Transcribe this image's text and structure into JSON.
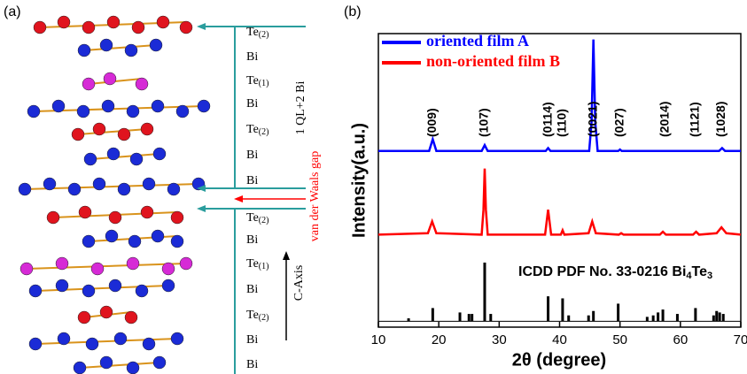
{
  "panel_a": {
    "label": "(a)",
    "layers": [
      {
        "symbol": "Te",
        "subscript": "(2)"
      },
      {
        "symbol": "Bi"
      },
      {
        "symbol": "Te",
        "subscript": "(1)"
      },
      {
        "symbol": "Bi"
      },
      {
        "symbol": "Te",
        "subscript": "(2)"
      },
      {
        "symbol": "Bi"
      },
      {
        "symbol": "Bi"
      },
      {
        "symbol": "Te",
        "subscript": "(2)"
      },
      {
        "symbol": "Bi"
      },
      {
        "symbol": "Te",
        "subscript": "(1)"
      },
      {
        "symbol": "Bi"
      },
      {
        "symbol": "Te",
        "subscript": "(2)"
      },
      {
        "symbol": "Bi"
      },
      {
        "symbol": "Bi"
      }
    ],
    "ql_label": "1 QL+2 Bi",
    "gap_label": "van der Waals gap",
    "axis_label": "C-Axis"
  },
  "chart_data": {
    "type": "line",
    "panel_label": "(b)",
    "x_label": "2θ (degree)",
    "y_label": "Intensity(a.u.)",
    "xlim": [
      10,
      70
    ],
    "xticks": [
      10,
      20,
      30,
      40,
      50,
      60,
      70
    ],
    "ylim": [
      -2,
      98
    ],
    "legend": "upper left",
    "series": [
      {
        "name": "oriented film A",
        "color": "#0000ff",
        "x": [
          10,
          18.4,
          19,
          19.6,
          27.1,
          27.6,
          28.1,
          37.7,
          38.1,
          38.5,
          44.9,
          45.3,
          45.6,
          45.9,
          46.3,
          49.7,
          50,
          50.3,
          66.4,
          66.9,
          67.4,
          70
        ],
        "values": [
          58,
          58,
          62,
          58,
          58,
          60,
          58,
          58,
          59,
          58,
          58,
          68,
          96,
          68,
          58,
          58,
          58.5,
          58,
          58,
          59,
          58,
          58
        ]
      },
      {
        "name": "non-oriented film B",
        "color": "#ff0000",
        "x": [
          10,
          18.2,
          18.9,
          19.6,
          27.1,
          27.4,
          27.6,
          27.8,
          28.1,
          37.6,
          38.1,
          38.6,
          40.2,
          40.5,
          40.8,
          44.8,
          45.4,
          46,
          49.8,
          50.2,
          50.6,
          56.6,
          57.1,
          57.6,
          62.1,
          62.6,
          63.1,
          66,
          66.8,
          67.6,
          70
        ],
        "values": [
          29.5,
          30,
          34,
          30,
          29.5,
          38,
          52,
          38,
          29.5,
          29.5,
          38,
          29.5,
          29.5,
          31,
          29.5,
          30,
          34,
          30,
          29.5,
          30,
          29.5,
          29.5,
          30.5,
          29.5,
          29.5,
          30.5,
          29.5,
          30,
          32,
          30,
          29.5
        ]
      }
    ],
    "reference": {
      "color": "#000000",
      "label": [
        {
          "text": "ICDD PDF No. 33-0216 Bi"
        },
        {
          "sub": "4"
        },
        {
          "text": "Te"
        },
        {
          "sub": "3"
        }
      ],
      "x": [
        15,
        19,
        23.5,
        25,
        25.5,
        27.6,
        28.6,
        38.1,
        40.5,
        41.5,
        44.8,
        45.6,
        49.7,
        54.5,
        55.5,
        56.3,
        57.1,
        59.5,
        62.5,
        65.5,
        66,
        66.5,
        67.1
      ],
      "values": [
        1,
        4.5,
        3,
        2.5,
        2.5,
        20,
        2.5,
        8.5,
        7.8,
        2,
        2,
        3.5,
        6,
        1.5,
        2,
        3,
        4,
        2.5,
        4.5,
        2,
        3.5,
        3,
        2.5
      ]
    },
    "peak_labels": [
      {
        "x": 19,
        "label": "(009)"
      },
      {
        "x": 27.6,
        "label": "(107)"
      },
      {
        "x": 38.1,
        "label": "(0114)"
      },
      {
        "x": 40.5,
        "label": "(110)"
      },
      {
        "x": 45.6,
        "label": "(0021)"
      },
      {
        "x": 50,
        "label": "(027)"
      },
      {
        "x": 57.5,
        "label": "(2014)"
      },
      {
        "x": 62.5,
        "label": "(1121)"
      },
      {
        "x": 66.8,
        "label": "(1028)"
      }
    ]
  }
}
